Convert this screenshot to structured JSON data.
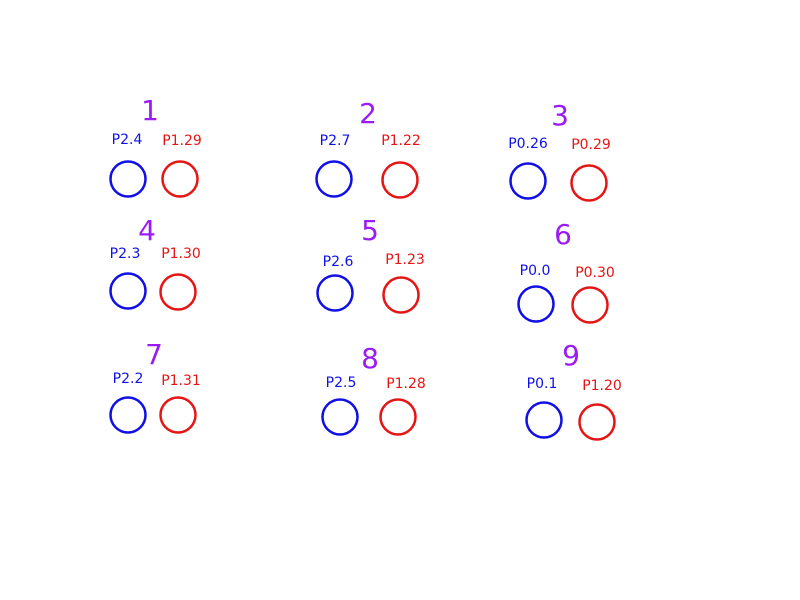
{
  "colors": {
    "number": "#9b1bf5",
    "blue": "#1010e6",
    "red": "#e61515",
    "background": "#ffffff"
  },
  "groups": [
    {
      "number": "1",
      "blue_pin": "P2.4",
      "red_pin": "P1.29"
    },
    {
      "number": "2",
      "blue_pin": "P2.7",
      "red_pin": "P1.22"
    },
    {
      "number": "3",
      "blue_pin": "P0.26",
      "red_pin": "P0.29"
    },
    {
      "number": "4",
      "blue_pin": "P2.3",
      "red_pin": "P1.30"
    },
    {
      "number": "5",
      "blue_pin": "P2.6",
      "red_pin": "P1.23"
    },
    {
      "number": "6",
      "blue_pin": "P0.0",
      "red_pin": "P0.30"
    },
    {
      "number": "7",
      "blue_pin": "P2.2",
      "red_pin": "P1.31"
    },
    {
      "number": "8",
      "blue_pin": "P2.5",
      "red_pin": "P1.28"
    },
    {
      "number": "9",
      "blue_pin": "P0.1",
      "red_pin": "P1.20"
    }
  ]
}
